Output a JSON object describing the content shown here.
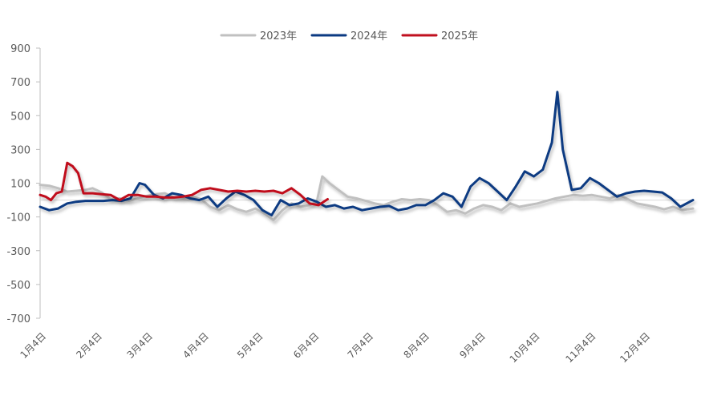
{
  "chart_data": {
    "type": "line",
    "x_axis": "month-day",
    "ylim": [
      -700,
      900
    ],
    "yticks": [
      900,
      700,
      500,
      300,
      100,
      -100,
      -300,
      -500,
      -700
    ],
    "xtick_labels": [
      "1月4日",
      "2月4日",
      "3月4日",
      "4月4日",
      "5月4日",
      "6月4日",
      "7月4日",
      "8月4日",
      "9月4日",
      "10月4日",
      "11月4日",
      "12月4日"
    ],
    "legend_position": "top",
    "grid": false,
    "series": [
      {
        "name": "2023年",
        "color": "#C0C0C0",
        "points": [
          [
            "01-04",
            90
          ],
          [
            "01-09",
            85
          ],
          [
            "01-14",
            70
          ],
          [
            "01-19",
            50
          ],
          [
            "01-24",
            55
          ],
          [
            "01-29",
            60
          ],
          [
            "02-02",
            70
          ],
          [
            "02-07",
            45
          ],
          [
            "02-12",
            5
          ],
          [
            "02-17",
            10
          ],
          [
            "02-22",
            -5
          ],
          [
            "02-27",
            10
          ],
          [
            "03-04",
            25
          ],
          [
            "03-09",
            35
          ],
          [
            "03-14",
            40
          ],
          [
            "03-19",
            15
          ],
          [
            "03-24",
            10
          ],
          [
            "03-29",
            20
          ],
          [
            "04-03",
            5
          ],
          [
            "04-08",
            -40
          ],
          [
            "04-13",
            -60
          ],
          [
            "04-18",
            -30
          ],
          [
            "04-23",
            -55
          ],
          [
            "04-28",
            -70
          ],
          [
            "05-03",
            -50
          ],
          [
            "05-08",
            -80
          ],
          [
            "05-13",
            -120
          ],
          [
            "05-18",
            -60
          ],
          [
            "05-23",
            -20
          ],
          [
            "05-28",
            -40
          ],
          [
            "06-02",
            -30
          ],
          [
            "06-06",
            -10
          ],
          [
            "06-09",
            140
          ],
          [
            "06-13",
            100
          ],
          [
            "06-18",
            60
          ],
          [
            "06-23",
            20
          ],
          [
            "06-28",
            10
          ],
          [
            "07-03",
            -5
          ],
          [
            "07-08",
            -20
          ],
          [
            "07-13",
            -30
          ],
          [
            "07-18",
            -10
          ],
          [
            "07-23",
            5
          ],
          [
            "07-28",
            0
          ],
          [
            "08-02",
            5
          ],
          [
            "08-07",
            0
          ],
          [
            "08-12",
            -30
          ],
          [
            "08-17",
            -70
          ],
          [
            "08-22",
            -60
          ],
          [
            "08-27",
            -80
          ],
          [
            "09-01",
            -50
          ],
          [
            "09-06",
            -30
          ],
          [
            "09-11",
            -40
          ],
          [
            "09-16",
            -60
          ],
          [
            "09-21",
            -20
          ],
          [
            "09-26",
            -40
          ],
          [
            "10-01",
            -30
          ],
          [
            "10-06",
            -20
          ],
          [
            "10-11",
            -5
          ],
          [
            "10-16",
            10
          ],
          [
            "10-21",
            20
          ],
          [
            "10-26",
            30
          ],
          [
            "10-31",
            25
          ],
          [
            "11-05",
            30
          ],
          [
            "11-10",
            20
          ],
          [
            "11-15",
            10
          ],
          [
            "11-20",
            30
          ],
          [
            "11-25",
            5
          ],
          [
            "11-30",
            -20
          ],
          [
            "12-05",
            -30
          ],
          [
            "12-10",
            -40
          ],
          [
            "12-15",
            -55
          ],
          [
            "12-20",
            -40
          ],
          [
            "12-25",
            -60
          ],
          [
            "12-31",
            -50
          ]
        ]
      },
      {
        "name": "2024年",
        "color": "#0B3A82",
        "points": [
          [
            "01-04",
            -40
          ],
          [
            "01-09",
            -60
          ],
          [
            "01-14",
            -50
          ],
          [
            "01-19",
            -20
          ],
          [
            "01-24",
            -10
          ],
          [
            "01-29",
            -5
          ],
          [
            "02-03",
            -5
          ],
          [
            "02-08",
            -5
          ],
          [
            "02-13",
            0
          ],
          [
            "02-18",
            -5
          ],
          [
            "02-23",
            10
          ],
          [
            "02-28",
            100
          ],
          [
            "03-03",
            90
          ],
          [
            "03-08",
            30
          ],
          [
            "03-13",
            10
          ],
          [
            "03-18",
            40
          ],
          [
            "03-23",
            30
          ],
          [
            "03-28",
            10
          ],
          [
            "04-02",
            0
          ],
          [
            "04-07",
            20
          ],
          [
            "04-12",
            -40
          ],
          [
            "04-17",
            10
          ],
          [
            "04-22",
            50
          ],
          [
            "04-27",
            30
          ],
          [
            "05-02",
            0
          ],
          [
            "05-07",
            -60
          ],
          [
            "05-12",
            -90
          ],
          [
            "05-17",
            0
          ],
          [
            "05-22",
            -30
          ],
          [
            "05-27",
            -20
          ],
          [
            "06-01",
            10
          ],
          [
            "06-06",
            -10
          ],
          [
            "06-11",
            -40
          ],
          [
            "06-16",
            -30
          ],
          [
            "06-21",
            -50
          ],
          [
            "06-26",
            -40
          ],
          [
            "07-01",
            -60
          ],
          [
            "07-06",
            -50
          ],
          [
            "07-11",
            -40
          ],
          [
            "07-16",
            -35
          ],
          [
            "07-21",
            -60
          ],
          [
            "07-26",
            -50
          ],
          [
            "07-31",
            -30
          ],
          [
            "08-05",
            -30
          ],
          [
            "08-10",
            0
          ],
          [
            "08-15",
            40
          ],
          [
            "08-20",
            20
          ],
          [
            "08-25",
            -40
          ],
          [
            "08-30",
            80
          ],
          [
            "09-04",
            130
          ],
          [
            "09-09",
            100
          ],
          [
            "09-14",
            50
          ],
          [
            "09-19",
            0
          ],
          [
            "09-24",
            80
          ],
          [
            "09-29",
            170
          ],
          [
            "10-04",
            140
          ],
          [
            "10-09",
            180
          ],
          [
            "10-14",
            340
          ],
          [
            "10-17",
            640
          ],
          [
            "10-20",
            300
          ],
          [
            "10-25",
            60
          ],
          [
            "10-30",
            70
          ],
          [
            "11-04",
            130
          ],
          [
            "11-09",
            100
          ],
          [
            "11-14",
            60
          ],
          [
            "11-19",
            20
          ],
          [
            "11-24",
            40
          ],
          [
            "11-29",
            50
          ],
          [
            "12-04",
            55
          ],
          [
            "12-09",
            50
          ],
          [
            "12-14",
            45
          ],
          [
            "12-19",
            10
          ],
          [
            "12-24",
            -40
          ],
          [
            "12-31",
            0
          ]
        ]
      },
      {
        "name": "2025年",
        "color": "#C0101F",
        "points": [
          [
            "01-04",
            30
          ],
          [
            "01-07",
            20
          ],
          [
            "01-10",
            0
          ],
          [
            "01-13",
            40
          ],
          [
            "01-16",
            50
          ],
          [
            "01-19",
            220
          ],
          [
            "01-22",
            200
          ],
          [
            "01-25",
            160
          ],
          [
            "01-28",
            40
          ],
          [
            "02-02",
            40
          ],
          [
            "02-07",
            35
          ],
          [
            "02-12",
            30
          ],
          [
            "02-17",
            0
          ],
          [
            "02-22",
            30
          ],
          [
            "02-27",
            30
          ],
          [
            "03-04",
            20
          ],
          [
            "03-09",
            20
          ],
          [
            "03-14",
            15
          ],
          [
            "03-19",
            15
          ],
          [
            "03-24",
            20
          ],
          [
            "03-29",
            30
          ],
          [
            "04-03",
            60
          ],
          [
            "04-08",
            70
          ],
          [
            "04-13",
            60
          ],
          [
            "04-18",
            50
          ],
          [
            "04-23",
            55
          ],
          [
            "04-28",
            50
          ],
          [
            "05-03",
            55
          ],
          [
            "05-08",
            50
          ],
          [
            "05-13",
            55
          ],
          [
            "05-18",
            40
          ],
          [
            "05-23",
            70
          ],
          [
            "05-28",
            30
          ],
          [
            "06-02",
            -20
          ],
          [
            "06-07",
            -30
          ],
          [
            "06-12",
            5
          ]
        ]
      }
    ]
  }
}
